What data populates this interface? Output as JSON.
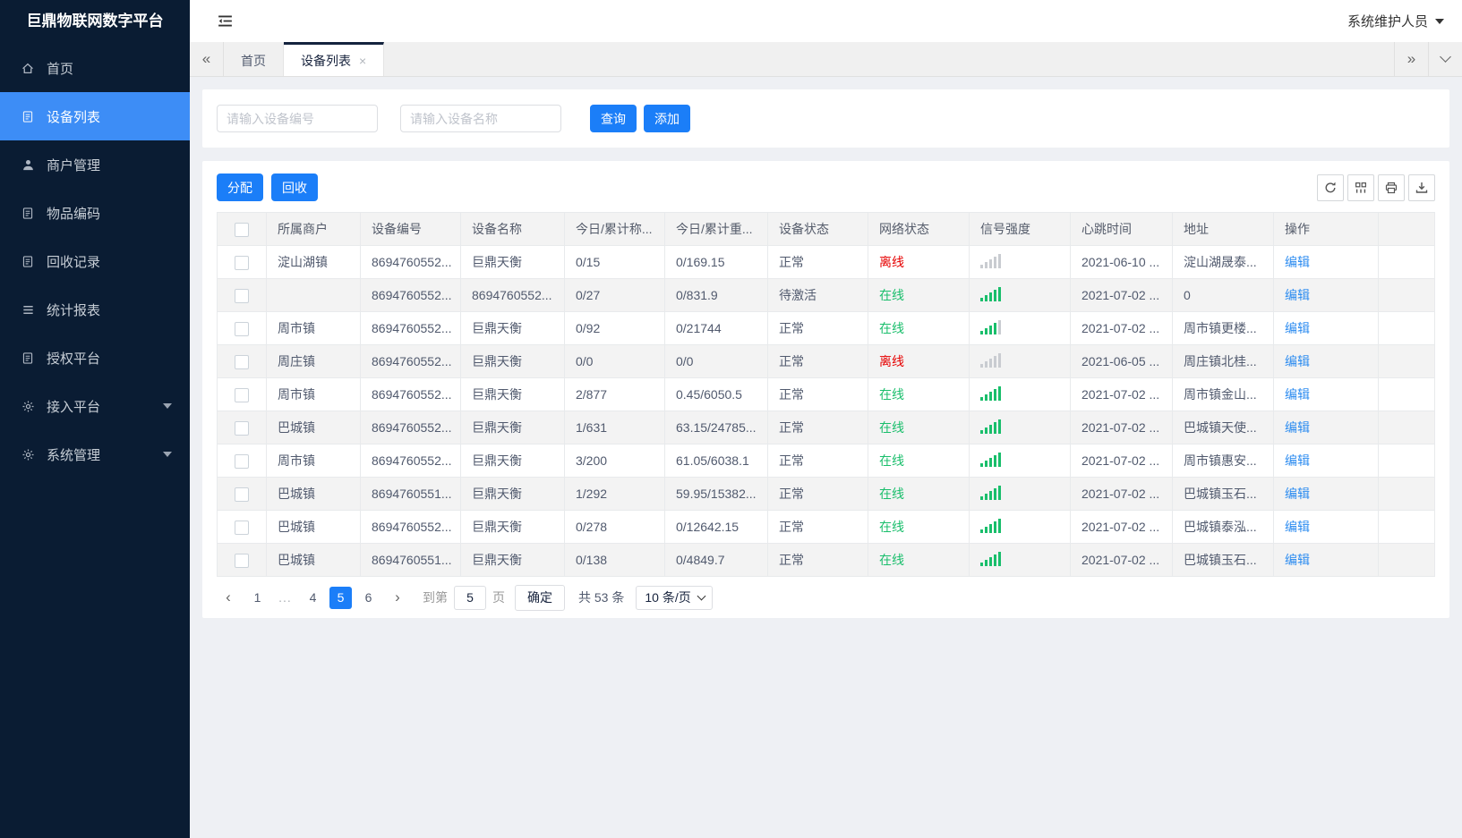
{
  "app": {
    "title": "巨鼎物联网数字平台",
    "user_role": "系统维护人员"
  },
  "glyphs": {
    "collapse_left": "«",
    "expand_right": "»",
    "close": "×",
    "prev": "‹",
    "next": "›"
  },
  "colors": {
    "accent": "#1b7ef8",
    "sidebar_bg": "#0a1c33",
    "sidebar_active": "#3d8df6",
    "link": "#2d8cf0",
    "success": "#19be6b",
    "danger": "#e60000"
  },
  "sidebar": {
    "items": [
      {
        "label": "首页",
        "icon": "home-icon",
        "active": false,
        "has_submenu": false
      },
      {
        "label": "设备列表",
        "icon": "file-text-icon",
        "active": true,
        "has_submenu": false
      },
      {
        "label": "商户管理",
        "icon": "user-icon",
        "active": false,
        "has_submenu": false
      },
      {
        "label": "物品编码",
        "icon": "file-text-icon",
        "active": false,
        "has_submenu": false
      },
      {
        "label": "回收记录",
        "icon": "file-text-icon",
        "active": false,
        "has_submenu": false
      },
      {
        "label": "统计报表",
        "icon": "list-icon",
        "active": false,
        "has_submenu": false
      },
      {
        "label": "授权平台",
        "icon": "file-text-icon",
        "active": false,
        "has_submenu": false
      },
      {
        "label": "接入平台",
        "icon": "gear-icon",
        "active": false,
        "has_submenu": true
      },
      {
        "label": "系统管理",
        "icon": "gear-icon",
        "active": false,
        "has_submenu": true
      }
    ]
  },
  "tabbar": {
    "tabs": [
      {
        "label": "首页",
        "active": false,
        "closable": false
      },
      {
        "label": "设备列表",
        "active": true,
        "closable": true
      }
    ]
  },
  "search": {
    "device_no_placeholder": "请输入设备编号",
    "device_name_placeholder": "请输入设备名称",
    "query_label": "查询",
    "add_label": "添加"
  },
  "toolbar": {
    "assign_label": "分配",
    "recycle_label": "回收",
    "icon_buttons": [
      "refresh-icon",
      "columns-icon",
      "print-icon",
      "export-icon"
    ]
  },
  "table": {
    "columns": [
      {
        "key": "merchant",
        "label": "所属商户"
      },
      {
        "key": "device_no",
        "label": "设备编号"
      },
      {
        "key": "device_name",
        "label": "设备名称"
      },
      {
        "key": "today_count",
        "label": "今日/累计称..."
      },
      {
        "key": "today_weight",
        "label": "今日/累计重..."
      },
      {
        "key": "device_status",
        "label": "设备状态"
      },
      {
        "key": "network_status",
        "label": "网络状态"
      },
      {
        "key": "signal",
        "label": "信号强度"
      },
      {
        "key": "heartbeat",
        "label": "心跳时间"
      },
      {
        "key": "address",
        "label": "地址"
      },
      {
        "key": "action",
        "label": "操作"
      }
    ],
    "rows": [
      {
        "merchant": "淀山湖镇",
        "device_no": "8694760552...",
        "device_name": "巨鼎天衡",
        "today_count": "0/15",
        "today_weight": "0/169.15",
        "device_status": "正常",
        "network_status": "离线",
        "network_state": "offline",
        "signal_level": 0,
        "heartbeat": "2021-06-10 ...",
        "address": "淀山湖晟泰...",
        "action": "编辑"
      },
      {
        "merchant": "",
        "device_no": "8694760552...",
        "device_name": "8694760552...",
        "today_count": "0/27",
        "today_weight": "0/831.9",
        "device_status": "待激活",
        "network_status": "在线",
        "network_state": "online",
        "signal_level": 5,
        "heartbeat": "2021-07-02 ...",
        "address": "0",
        "action": "编辑"
      },
      {
        "merchant": "周市镇",
        "device_no": "8694760552...",
        "device_name": "巨鼎天衡",
        "today_count": "0/92",
        "today_weight": "0/21744",
        "device_status": "正常",
        "network_status": "在线",
        "network_state": "online",
        "signal_level": 4,
        "heartbeat": "2021-07-02 ...",
        "address": "周市镇更楼...",
        "action": "编辑"
      },
      {
        "merchant": "周庄镇",
        "device_no": "8694760552...",
        "device_name": "巨鼎天衡",
        "today_count": "0/0",
        "today_weight": "0/0",
        "device_status": "正常",
        "network_status": "离线",
        "network_state": "offline",
        "signal_level": 0,
        "heartbeat": "2021-06-05 ...",
        "address": "周庄镇北桂...",
        "action": "编辑"
      },
      {
        "merchant": "周市镇",
        "device_no": "8694760552...",
        "device_name": "巨鼎天衡",
        "today_count": "2/877",
        "today_weight": "0.45/6050.5",
        "device_status": "正常",
        "network_status": "在线",
        "network_state": "online",
        "signal_level": 5,
        "heartbeat": "2021-07-02 ...",
        "address": "周市镇金山...",
        "action": "编辑"
      },
      {
        "merchant": "巴城镇",
        "device_no": "8694760552...",
        "device_name": "巨鼎天衡",
        "today_count": "1/631",
        "today_weight": "63.15/24785...",
        "device_status": "正常",
        "network_status": "在线",
        "network_state": "online",
        "signal_level": 5,
        "heartbeat": "2021-07-02 ...",
        "address": "巴城镇天使...",
        "action": "编辑"
      },
      {
        "merchant": "周市镇",
        "device_no": "8694760552...",
        "device_name": "巨鼎天衡",
        "today_count": "3/200",
        "today_weight": "61.05/6038.1",
        "device_status": "正常",
        "network_status": "在线",
        "network_state": "online",
        "signal_level": 5,
        "heartbeat": "2021-07-02 ...",
        "address": "周市镇惠安...",
        "action": "编辑"
      },
      {
        "merchant": "巴城镇",
        "device_no": "8694760551...",
        "device_name": "巨鼎天衡",
        "today_count": "1/292",
        "today_weight": "59.95/15382...",
        "device_status": "正常",
        "network_status": "在线",
        "network_state": "online",
        "signal_level": 5,
        "heartbeat": "2021-07-02 ...",
        "address": "巴城镇玉石...",
        "action": "编辑"
      },
      {
        "merchant": "巴城镇",
        "device_no": "8694760552...",
        "device_name": "巨鼎天衡",
        "today_count": "0/278",
        "today_weight": "0/12642.15",
        "device_status": "正常",
        "network_status": "在线",
        "network_state": "online",
        "signal_level": 5,
        "heartbeat": "2021-07-02 ...",
        "address": "巴城镇泰泓...",
        "action": "编辑"
      },
      {
        "merchant": "巴城镇",
        "device_no": "8694760551...",
        "device_name": "巨鼎天衡",
        "today_count": "0/138",
        "today_weight": "0/4849.7",
        "device_status": "正常",
        "network_status": "在线",
        "network_state": "online",
        "signal_level": 5,
        "heartbeat": "2021-07-02 ...",
        "address": "巴城镇玉石...",
        "action": "编辑"
      }
    ]
  },
  "pagination": {
    "pages": [
      {
        "label": "1",
        "active": false
      },
      {
        "label": "...",
        "active": false
      },
      {
        "label": "4",
        "active": false
      },
      {
        "label": "5",
        "active": true
      },
      {
        "label": "6",
        "active": false
      }
    ],
    "goto_label": "到第",
    "goto_value": "5",
    "goto_unit": "页",
    "confirm_label": "确定",
    "total_label": "共 53 条",
    "page_size_label": "10 条/页"
  }
}
